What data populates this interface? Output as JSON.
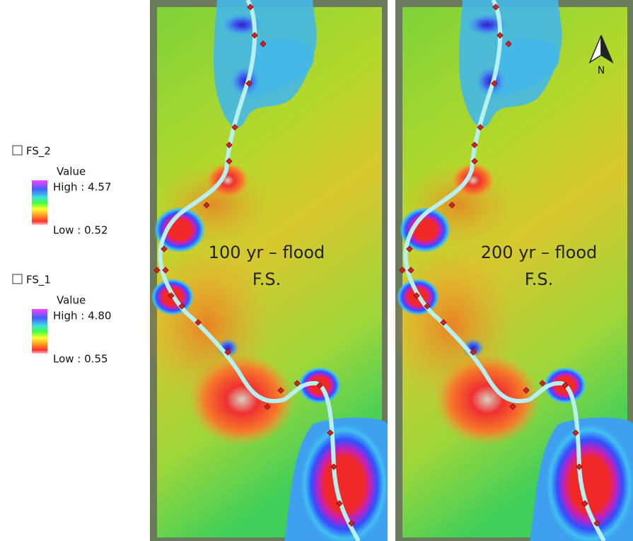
{
  "legend": [
    {
      "layer": "FS_2",
      "field": "Value",
      "high": "High : 4.57",
      "low": "Low : 0.52"
    },
    {
      "layer": "FS_1",
      "field": "Value",
      "high": "High : 4.80",
      "low": "Low : 0.55"
    }
  ],
  "maps": [
    {
      "label": "100 yr – flood",
      "sublabel": "F.S."
    },
    {
      "label": "200 yr – flood",
      "sublabel": "F.S."
    }
  ],
  "north_arrow": "N"
}
